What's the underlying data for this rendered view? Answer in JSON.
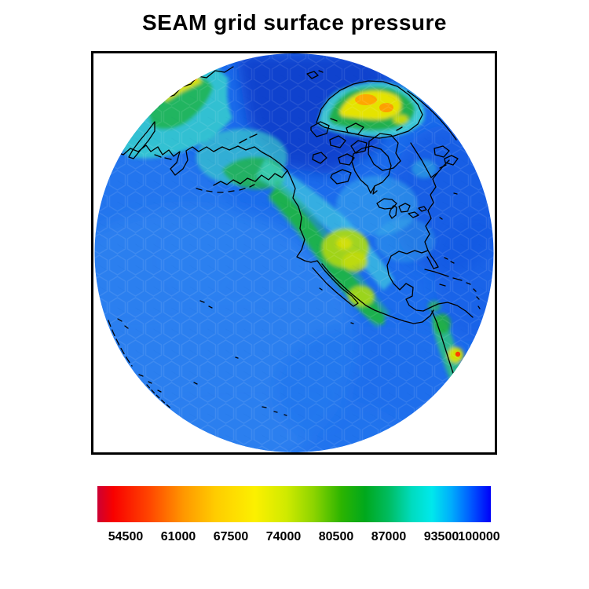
{
  "title": "SEAM grid surface pressure",
  "chart_data": {
    "type": "heatmap",
    "title": "SEAM grid surface pressure",
    "variable": "surface pressure",
    "projection": "orthographic globe (North Pacific, North America and Greenland in view)",
    "grid": "hexagonal (Voronoi) cell shading",
    "legend_position": "horizontal colorbar below map",
    "colorbar": {
      "orientation": "horizontal",
      "tick_labels": [
        "54500",
        "61000",
        "67500",
        "74000",
        "80500",
        "87000",
        "93500",
        "100000"
      ],
      "ticks": [
        54500,
        61000,
        67500,
        74000,
        80500,
        87000,
        93500,
        100000
      ],
      "tick_interval": 6500,
      "gradient": [
        {
          "color": "#cc0033",
          "pos": 0
        },
        {
          "color": "#f80000",
          "pos": 4
        },
        {
          "color": "#ff4400",
          "pos": 13
        },
        {
          "color": "#ff9800",
          "pos": 22
        },
        {
          "color": "#ffcc00",
          "pos": 30
        },
        {
          "color": "#fcf000",
          "pos": 40
        },
        {
          "color": "#d0ea00",
          "pos": 48
        },
        {
          "color": "#8cd400",
          "pos": 55
        },
        {
          "color": "#2cb400",
          "pos": 62
        },
        {
          "color": "#00a81c",
          "pos": 68
        },
        {
          "color": "#00bc60",
          "pos": 74
        },
        {
          "color": "#00dcc0",
          "pos": 80
        },
        {
          "color": "#00e8ec",
          "pos": 85
        },
        {
          "color": "#00acfc",
          "pos": 90
        },
        {
          "color": "#0058ff",
          "pos": 95
        },
        {
          "color": "#0000f8",
          "pos": 100
        }
      ]
    },
    "features": [
      {
        "name": "Pacific and Atlantic oceans",
        "color": "medium blue",
        "approx_value": 100000
      },
      {
        "name": "Arctic Ocean",
        "color": "dark blue",
        "approx_value": 101500
      },
      {
        "name": "Greenland ice sheet interior",
        "color": "yellow / orange",
        "approx_value": 69000
      },
      {
        "name": "Rocky Mountains / western U.S. highlands",
        "color": "green with yellow-green core",
        "approx_value": 79000
      },
      {
        "name": "Mexican plateau",
        "color": "green / yellow-green",
        "approx_value": 80000
      },
      {
        "name": "Alaska and northeast Siberia ranges",
        "color": "cyan-green",
        "approx_value": 90000
      },
      {
        "name": "Andes mountains",
        "color": "green-yellow with small red peak",
        "approx_value": 60000
      },
      {
        "name": "continental coastlines",
        "color": "black outlines"
      }
    ]
  }
}
